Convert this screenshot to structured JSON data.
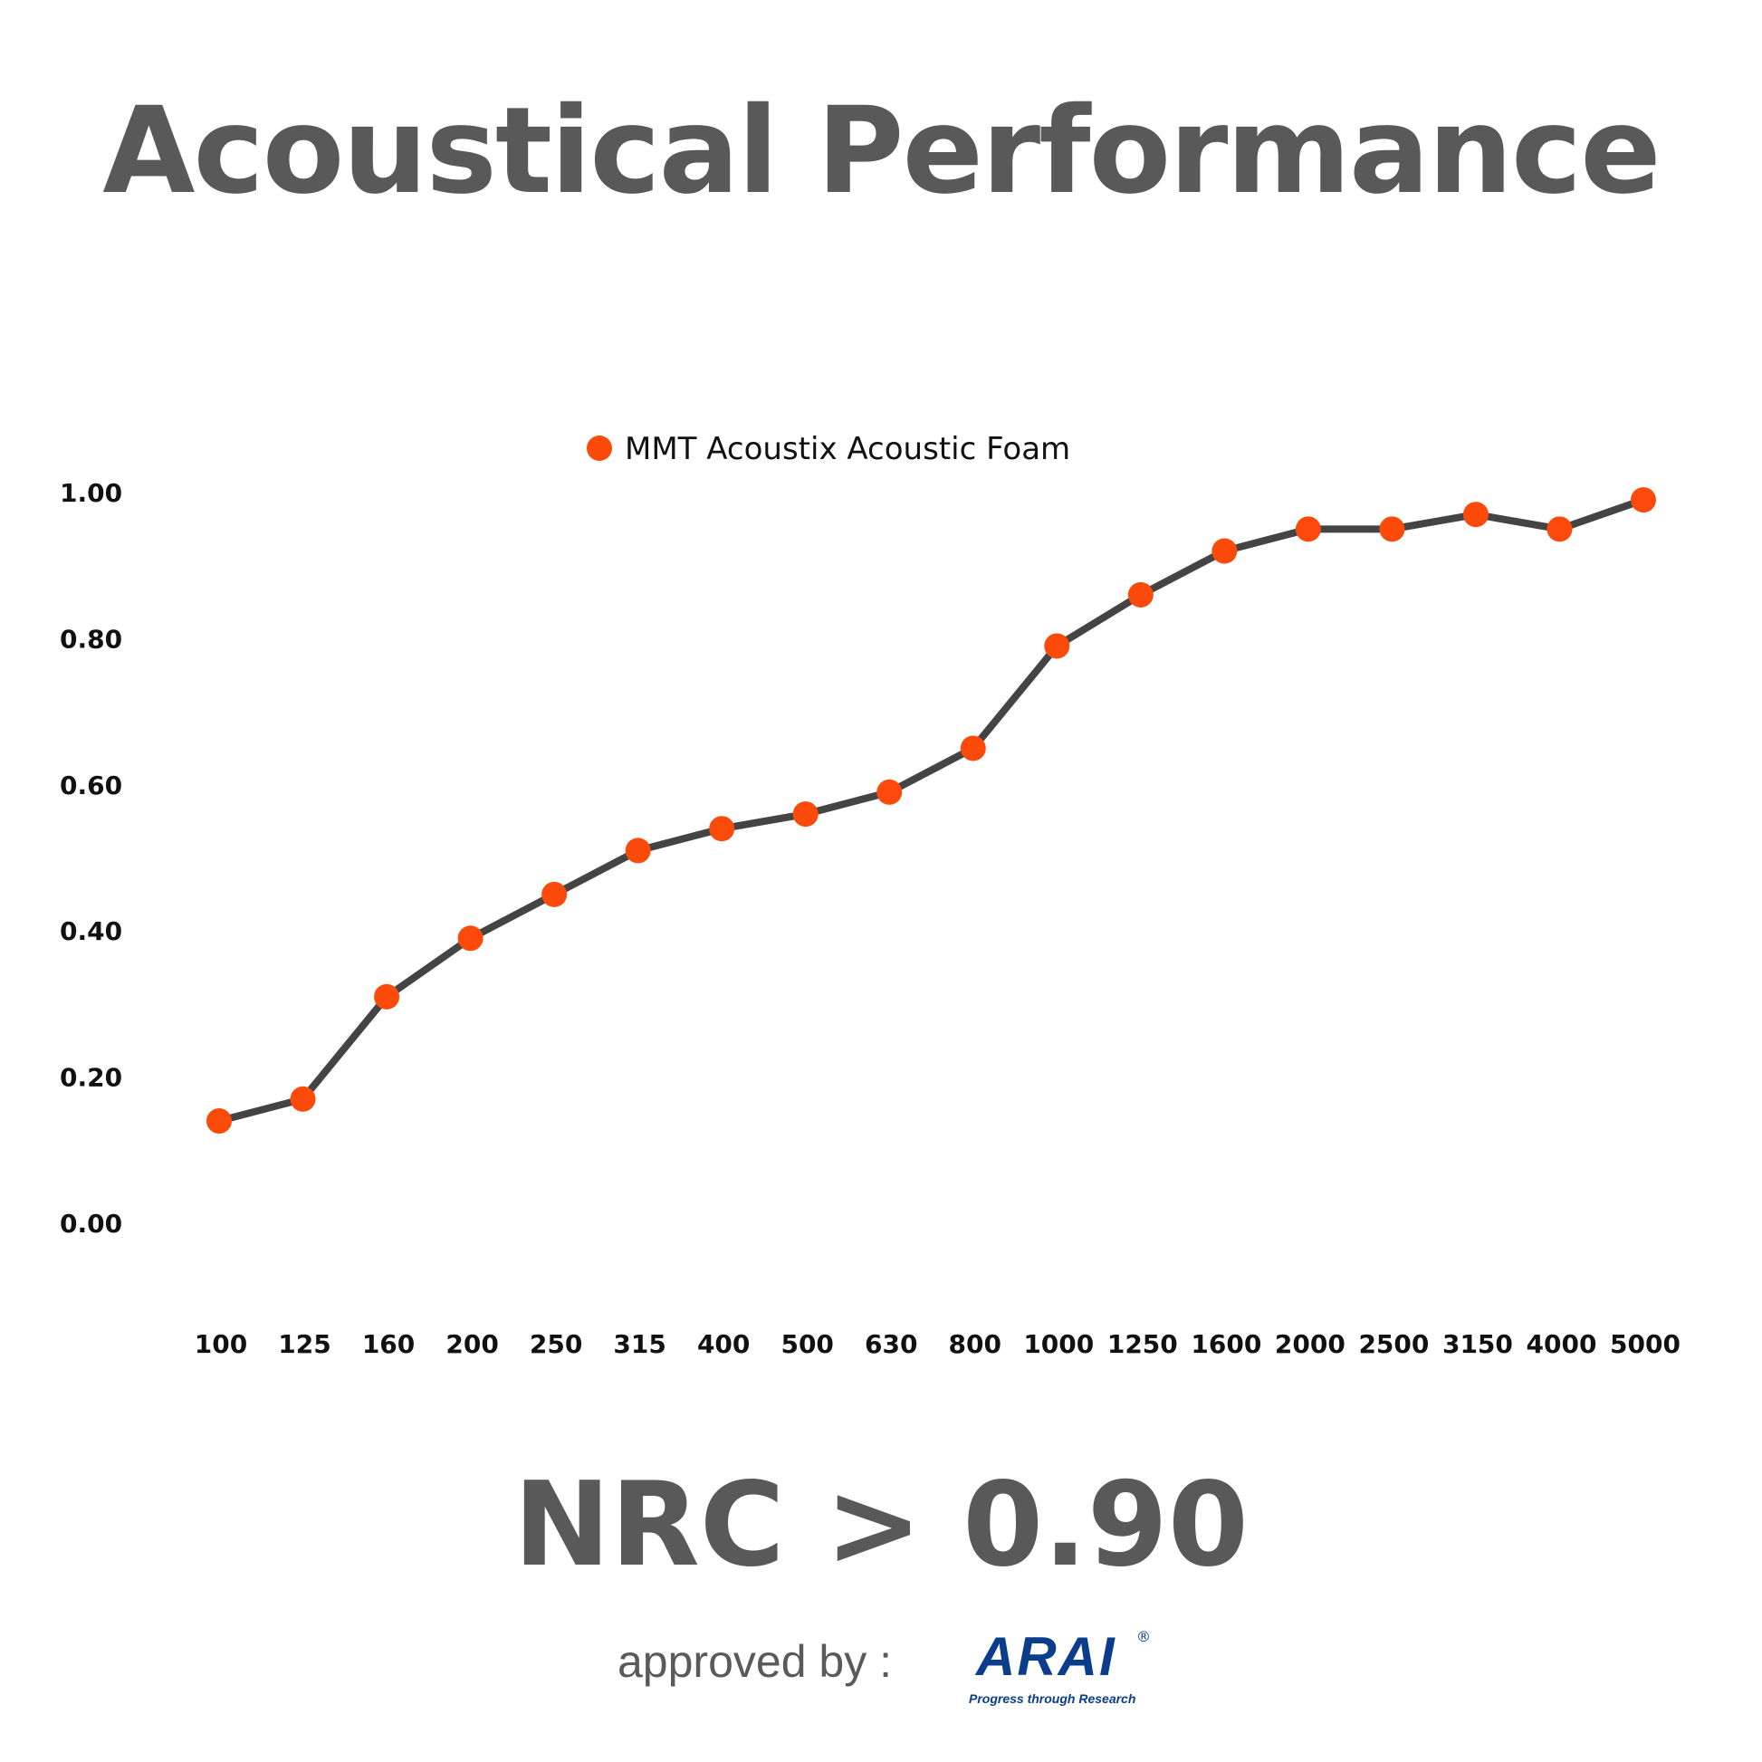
{
  "title": "Acoustical Performance",
  "chart_data": {
    "type": "line",
    "title": "Acoustical Performance",
    "xlabel": "",
    "ylabel": "",
    "categories": [
      "100",
      "125",
      "160",
      "200",
      "250",
      "315",
      "400",
      "500",
      "630",
      "800",
      "1000",
      "1250",
      "1600",
      "2000",
      "2500",
      "3150",
      "4000",
      "5000"
    ],
    "series": [
      {
        "name": "MMT Acoustix Acoustic Foam",
        "values": [
          0.14,
          0.17,
          0.31,
          0.39,
          0.45,
          0.51,
          0.54,
          0.56,
          0.59,
          0.65,
          0.79,
          0.86,
          0.92,
          0.95,
          0.95,
          0.97,
          0.95,
          0.99
        ]
      }
    ],
    "yticks": [
      "0.00",
      "0.20",
      "0.40",
      "0.60",
      "0.80",
      "1.00"
    ],
    "ylim": [
      0,
      1.0
    ],
    "grid": false,
    "legend_position": "top-center",
    "colors": {
      "line": "#444444",
      "marker": "#fc4a0a"
    }
  },
  "nrc": "NRC > 0.90",
  "approved_label": "approved by :",
  "logo": {
    "name": "ARAI",
    "tagline": "Progress through Research",
    "mark": "®"
  }
}
